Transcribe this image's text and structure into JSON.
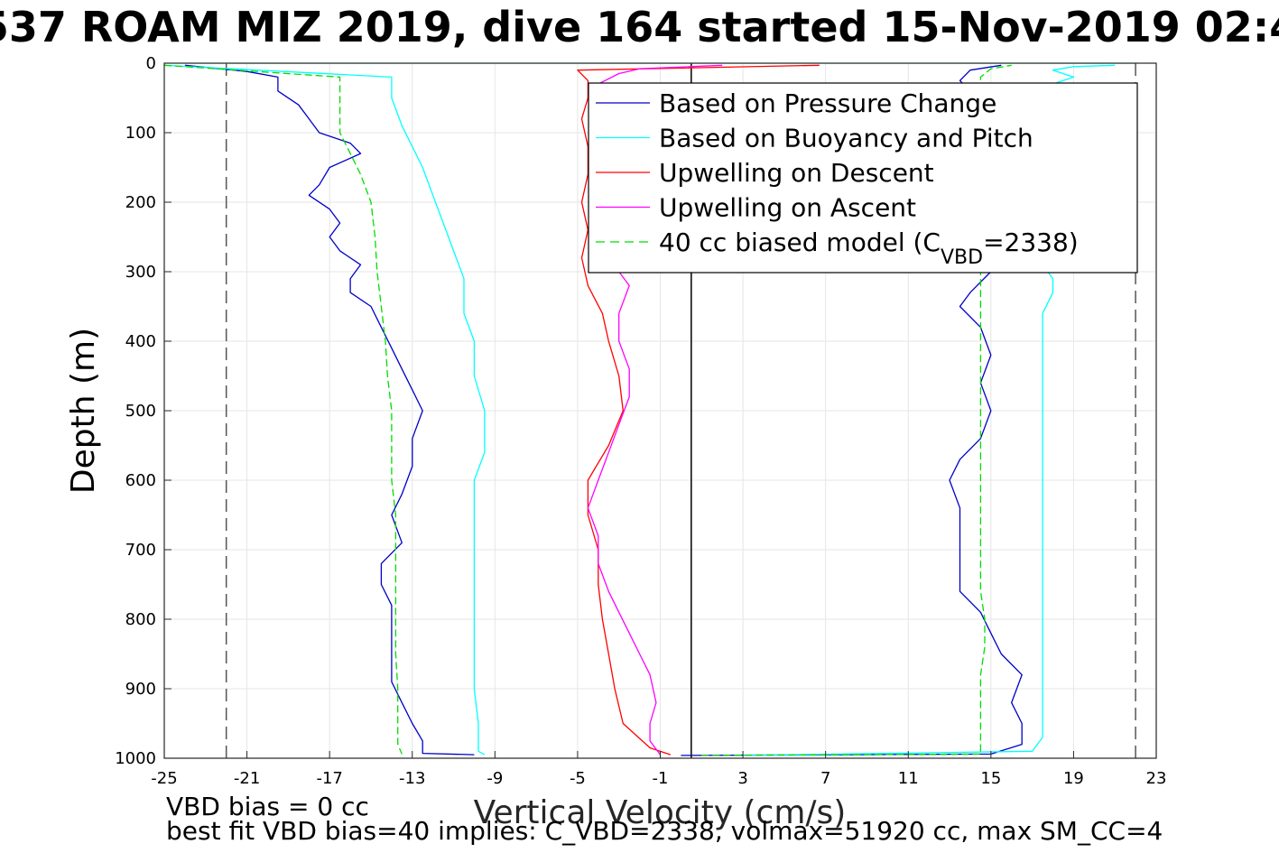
{
  "chart_data": {
    "type": "line",
    "title": "537 ROAM MIZ 2019, dive 164 started 15-Nov-2019 02:4",
    "xlabel": "Vertical Velocity (cm/s)",
    "ylabel": "Depth (m)",
    "xlim": [
      -25,
      23
    ],
    "ylim": [
      0,
      1000
    ],
    "y_reversed": true,
    "grid": true,
    "xticks": [
      "-25",
      "-21",
      "-17",
      "-13",
      "-9",
      "-5",
      "-1",
      "3",
      "7",
      "11",
      "15",
      "19",
      "23"
    ],
    "yticks": [
      "0",
      "100",
      "200",
      "300",
      "400",
      "500",
      "600",
      "700",
      "800",
      "900",
      "1000"
    ],
    "reference_lines": [
      {
        "x": -22,
        "style": "dashed",
        "color": "#555555"
      },
      {
        "x": 0.5,
        "style": "solid",
        "color": "#000000"
      },
      {
        "x": 22,
        "style": "dashed",
        "color": "#555555"
      }
    ],
    "legend": {
      "placement": "top-right",
      "entries": [
        {
          "label": "Based on Pressure Change",
          "color": "#0000c8",
          "style": "solid"
        },
        {
          "label": "Based on Buoyancy and Pitch",
          "color": "#00ffff",
          "style": "solid"
        },
        {
          "label": "Upwelling on Descent",
          "color": "#ff0000",
          "style": "solid"
        },
        {
          "label": "Upwelling on Ascent",
          "color": "#ff00ff",
          "style": "solid"
        },
        {
          "label_main": "40 cc biased model (C",
          "label_sub": "VBD",
          "label_tail": "=2338)",
          "color": "#00dd00",
          "style": "dashed"
        }
      ]
    },
    "series": [
      {
        "key": "pressure_descent",
        "color": "#0000c8",
        "style": "solid",
        "points": [
          [
            -24,
            3
          ],
          [
            -21,
            12
          ],
          [
            -19.5,
            20
          ],
          [
            -19.5,
            40
          ],
          [
            -18.5,
            60
          ],
          [
            -18,
            80
          ],
          [
            -17.5,
            100
          ],
          [
            -16,
            115
          ],
          [
            -15.5,
            130
          ],
          [
            -17,
            150
          ],
          [
            -17.5,
            175
          ],
          [
            -18,
            190
          ],
          [
            -17,
            210
          ],
          [
            -16.5,
            230
          ],
          [
            -17,
            250
          ],
          [
            -16.5,
            270
          ],
          [
            -15.5,
            290
          ],
          [
            -16,
            310
          ],
          [
            -16,
            330
          ],
          [
            -15,
            350
          ],
          [
            -14.5,
            380
          ],
          [
            -14,
            410
          ],
          [
            -13.5,
            440
          ],
          [
            -13,
            470
          ],
          [
            -12.5,
            500
          ],
          [
            -13,
            540
          ],
          [
            -13,
            580
          ],
          [
            -13.5,
            620
          ],
          [
            -14,
            650
          ],
          [
            -13.5,
            690
          ],
          [
            -14.5,
            720
          ],
          [
            -14.5,
            750
          ],
          [
            -14,
            780
          ],
          [
            -14,
            820
          ],
          [
            -14,
            860
          ],
          [
            -14,
            890
          ],
          [
            -13.5,
            920
          ],
          [
            -13,
            950
          ],
          [
            -12.5,
            975
          ],
          [
            -12.5,
            993
          ],
          [
            -10,
            995
          ]
        ]
      },
      {
        "key": "buoyancy_descent",
        "color": "#00ffff",
        "style": "solid",
        "points": [
          [
            -25,
            3
          ],
          [
            -14,
            20
          ],
          [
            -14,
            50
          ],
          [
            -13.5,
            90
          ],
          [
            -13,
            120
          ],
          [
            -12.5,
            150
          ],
          [
            -12,
            190
          ],
          [
            -11.5,
            230
          ],
          [
            -11,
            270
          ],
          [
            -10.5,
            310
          ],
          [
            -10.5,
            360
          ],
          [
            -10,
            400
          ],
          [
            -10,
            450
          ],
          [
            -9.5,
            500
          ],
          [
            -9.5,
            560
          ],
          [
            -10,
            600
          ],
          [
            -10,
            650
          ],
          [
            -10,
            700
          ],
          [
            -10,
            750
          ],
          [
            -10,
            800
          ],
          [
            -10,
            850
          ],
          [
            -10,
            900
          ],
          [
            -9.8,
            950
          ],
          [
            -9.8,
            990
          ],
          [
            -9.5,
            995
          ]
        ]
      },
      {
        "key": "model_descent",
        "color": "#00dd00",
        "style": "dashed",
        "points": [
          [
            -25,
            3
          ],
          [
            -16.5,
            20
          ],
          [
            -16.5,
            60
          ],
          [
            -16.5,
            100
          ],
          [
            -16,
            130
          ],
          [
            -15.5,
            160
          ],
          [
            -15,
            200
          ],
          [
            -14.8,
            250
          ],
          [
            -14.7,
            300
          ],
          [
            -14.5,
            350
          ],
          [
            -14.3,
            400
          ],
          [
            -14.2,
            450
          ],
          [
            -14,
            500
          ],
          [
            -14,
            550
          ],
          [
            -14,
            600
          ],
          [
            -13.8,
            650
          ],
          [
            -13.8,
            700
          ],
          [
            -13.8,
            750
          ],
          [
            -13.8,
            800
          ],
          [
            -13.8,
            850
          ],
          [
            -13.7,
            900
          ],
          [
            -13.7,
            950
          ],
          [
            -13.7,
            980
          ],
          [
            -13.5,
            994
          ]
        ]
      },
      {
        "key": "upwelling_descent",
        "color": "#ff0000",
        "style": "solid",
        "points": [
          [
            6.7,
            3
          ],
          [
            -5,
            10
          ],
          [
            -4.5,
            25
          ],
          [
            -4.5,
            50
          ],
          [
            -4.8,
            80
          ],
          [
            -4.5,
            120
          ],
          [
            -4.5,
            160
          ],
          [
            -4.8,
            200
          ],
          [
            -4.5,
            240
          ],
          [
            -4.8,
            280
          ],
          [
            -4.5,
            320
          ],
          [
            -3.8,
            360
          ],
          [
            -3.5,
            400
          ],
          [
            -3,
            450
          ],
          [
            -2.8,
            500
          ],
          [
            -3.5,
            550
          ],
          [
            -4.5,
            600
          ],
          [
            -4.5,
            650
          ],
          [
            -4,
            700
          ],
          [
            -4,
            750
          ],
          [
            -3.8,
            800
          ],
          [
            -3.5,
            850
          ],
          [
            -3.2,
            900
          ],
          [
            -2.8,
            950
          ],
          [
            -1.5,
            985
          ],
          [
            -0.5,
            995
          ]
        ]
      },
      {
        "key": "upwelling_ascent",
        "color": "#ff00ff",
        "style": "solid",
        "points": [
          [
            -1,
            995
          ],
          [
            -1.5,
            975
          ],
          [
            -1.5,
            950
          ],
          [
            -1.2,
            920
          ],
          [
            -1.5,
            880
          ],
          [
            -2,
            850
          ],
          [
            -2.5,
            820
          ],
          [
            -3,
            790
          ],
          [
            -3.5,
            760
          ],
          [
            -4,
            720
          ],
          [
            -4,
            680
          ],
          [
            -4.5,
            640
          ],
          [
            -4,
            600
          ],
          [
            -3.5,
            560
          ],
          [
            -3,
            520
          ],
          [
            -2.5,
            480
          ],
          [
            -2.5,
            440
          ],
          [
            -3,
            400
          ],
          [
            -3,
            360
          ],
          [
            -2.5,
            320
          ],
          [
            -3,
            300
          ]
        ]
      },
      {
        "key": "upwelling_ascent_top",
        "color": "#ff00ff",
        "style": "solid",
        "points": [
          [
            -4,
            50
          ],
          [
            -4,
            30
          ],
          [
            -3,
            15
          ],
          [
            -2,
            8
          ],
          [
            2,
            3
          ]
        ]
      },
      {
        "key": "pressure_ascent",
        "color": "#0000c8",
        "style": "solid",
        "points": [
          [
            0,
            996
          ],
          [
            15,
            994
          ],
          [
            16.5,
            980
          ],
          [
            16.5,
            950
          ],
          [
            16,
            920
          ],
          [
            16.5,
            880
          ],
          [
            15.5,
            850
          ],
          [
            15,
            820
          ],
          [
            14.5,
            790
          ],
          [
            13.5,
            760
          ],
          [
            13.5,
            720
          ],
          [
            13.5,
            680
          ],
          [
            13.5,
            640
          ],
          [
            13,
            600
          ],
          [
            13.5,
            570
          ],
          [
            14.5,
            540
          ],
          [
            15,
            500
          ],
          [
            14.5,
            460
          ],
          [
            15,
            420
          ],
          [
            14.5,
            380
          ],
          [
            13.5,
            350
          ],
          [
            14,
            330
          ],
          [
            15,
            300
          ],
          [
            14.5,
            280
          ]
        ]
      },
      {
        "key": "pressure_ascent_top",
        "color": "#0000c8",
        "style": "solid",
        "points": [
          [
            14,
            40
          ],
          [
            13.5,
            25
          ],
          [
            14,
            10
          ],
          [
            15.5,
            3
          ]
        ]
      },
      {
        "key": "buoyancy_ascent",
        "color": "#00ffff",
        "style": "solid",
        "points": [
          [
            3,
            996
          ],
          [
            17,
            990
          ],
          [
            17.5,
            970
          ],
          [
            17.5,
            940
          ],
          [
            17.5,
            900
          ],
          [
            17.5,
            870
          ],
          [
            17.5,
            840
          ],
          [
            17.5,
            800
          ],
          [
            17.5,
            760
          ],
          [
            17.5,
            720
          ],
          [
            17.5,
            680
          ],
          [
            17.5,
            640
          ],
          [
            17.5,
            600
          ],
          [
            17.5,
            560
          ],
          [
            17.5,
            520
          ],
          [
            17.5,
            480
          ],
          [
            17.5,
            440
          ],
          [
            17.5,
            400
          ],
          [
            17.5,
            360
          ],
          [
            18,
            330
          ],
          [
            18,
            310
          ],
          [
            17.5,
            290
          ]
        ]
      },
      {
        "key": "buoyancy_ascent_top",
        "color": "#00ffff",
        "style": "solid",
        "points": [
          [
            17,
            40
          ],
          [
            19,
            20
          ],
          [
            18,
            10
          ],
          [
            19,
            5
          ],
          [
            21,
            3
          ]
        ]
      },
      {
        "key": "model_ascent",
        "color": "#00dd00",
        "style": "dashed",
        "points": [
          [
            1,
            996
          ],
          [
            14.5,
            994
          ],
          [
            14.5,
            960
          ],
          [
            14.5,
            920
          ],
          [
            14.5,
            880
          ],
          [
            14.7,
            840
          ],
          [
            14.7,
            800
          ],
          [
            14.5,
            760
          ],
          [
            14.5,
            720
          ],
          [
            14.5,
            680
          ],
          [
            14.5,
            640
          ],
          [
            14.5,
            600
          ],
          [
            14.5,
            560
          ],
          [
            14.5,
            520
          ],
          [
            14.5,
            480
          ],
          [
            14.5,
            440
          ],
          [
            14.5,
            400
          ],
          [
            14.5,
            360
          ],
          [
            14.5,
            320
          ],
          [
            14.5,
            290
          ]
        ]
      },
      {
        "key": "model_ascent_top",
        "color": "#00dd00",
        "style": "dashed",
        "points": [
          [
            14.5,
            40
          ],
          [
            14.5,
            20
          ],
          [
            15,
            8
          ],
          [
            16,
            3
          ]
        ]
      },
      {
        "key": "surface_spike",
        "color": "#00ffff",
        "style": "solid",
        "points": [
          [
            -24,
            0
          ],
          [
            22,
            0
          ]
        ]
      }
    ]
  },
  "annotations": {
    "vbd_bias": "VBD bias = 0 cc",
    "best_fit": "best fit VBD bias=40 implies: C_VBD=2338, volmax=51920 cc, max SM_CC=4"
  }
}
